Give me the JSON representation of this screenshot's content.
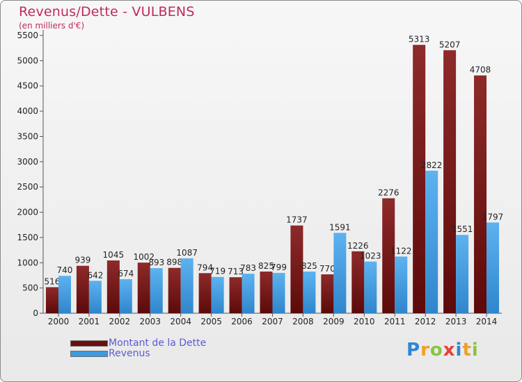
{
  "header": {
    "title": "Revenus/Dette - VULBENS",
    "subtitle": "(en milliers d'€)"
  },
  "colors": {
    "debt": "#7a1c1c",
    "revenue": "#4da4e8",
    "title": "#c0295d",
    "legend_text": "#5b5bd6"
  },
  "legend": {
    "items": [
      {
        "label": "Montant de la Dette",
        "color": "#6b0f0f"
      },
      {
        "label": "Revenus",
        "color": "#3d9ae0"
      }
    ]
  },
  "brand": {
    "letters": [
      {
        "ch": "P",
        "color": "#2e86d4"
      },
      {
        "ch": "r",
        "color": "#f0a020"
      },
      {
        "ch": "o",
        "color": "#8ac43f"
      },
      {
        "ch": "x",
        "color": "#e8403a"
      },
      {
        "ch": "i",
        "color": "#2e86d4"
      },
      {
        "ch": "t",
        "color": "#f0a020"
      },
      {
        "ch": "i",
        "color": "#8ac43f"
      }
    ]
  },
  "chart_data": {
    "type": "bar",
    "title": "Revenus/Dette - VULBENS",
    "subtitle": "(en milliers d'€)",
    "categories": [
      "2000",
      "2001",
      "2002",
      "2003",
      "2004",
      "2005",
      "2006",
      "2007",
      "2008",
      "2009",
      "2010",
      "2011",
      "2012",
      "2013",
      "2014"
    ],
    "series": [
      {
        "name": "Montant de la Dette",
        "values": [
          516,
          939,
          1045,
          1002,
          898,
          794,
          713,
          825,
          1737,
          770,
          1226,
          2276,
          5313,
          5207,
          4708
        ]
      },
      {
        "name": "Revenus",
        "values": [
          740,
          642,
          674,
          893,
          1087,
          719,
          783,
          799,
          825,
          1591,
          1023,
          1122,
          2822,
          1551,
          1797
        ]
      }
    ],
    "ylim": [
      0,
      5500
    ],
    "yticks": [
      0,
      500,
      1000,
      1500,
      2000,
      2500,
      3000,
      3500,
      4000,
      4500,
      5000,
      5500
    ],
    "grid": false,
    "legend_position": "bottom-left"
  }
}
